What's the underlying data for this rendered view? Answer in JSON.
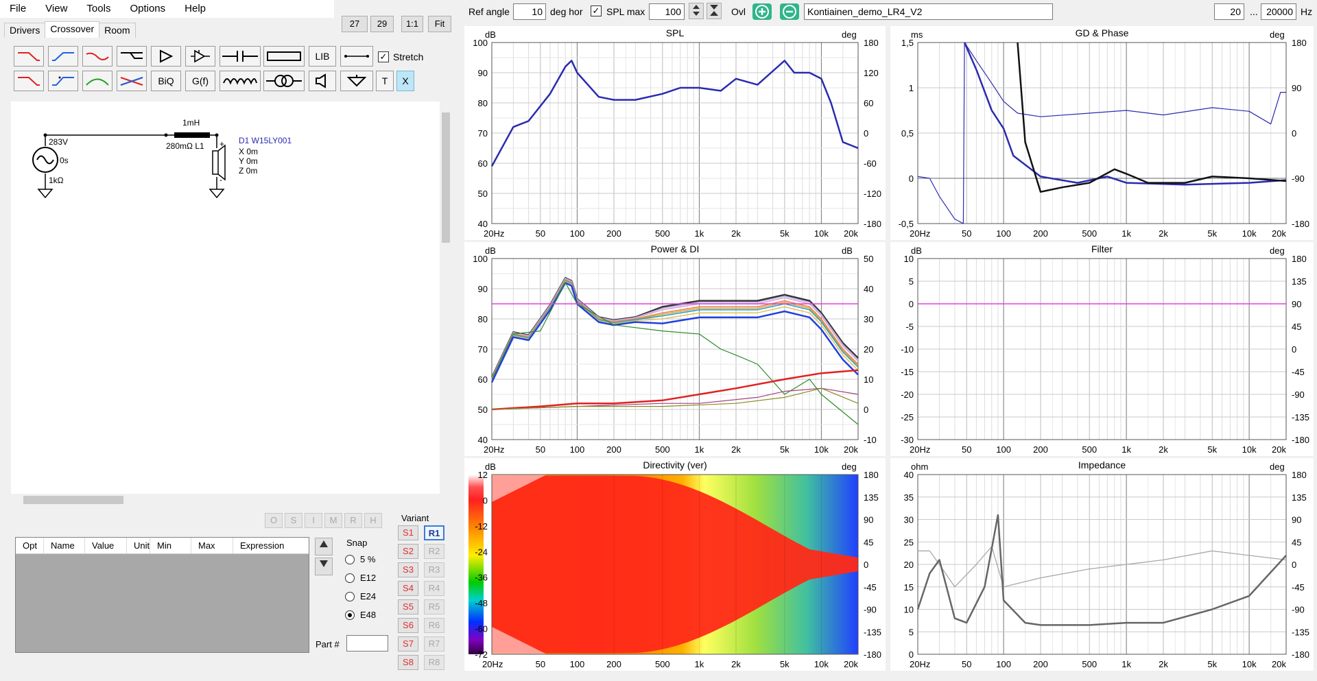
{
  "menu": [
    "File",
    "View",
    "Tools",
    "Options",
    "Help"
  ],
  "zoom_buttons": [
    "27",
    "29",
    "1:1",
    "Fit"
  ],
  "tabs": [
    "Drivers",
    "Crossover",
    "Room"
  ],
  "toolbar": {
    "lib": "LIB",
    "biq": "BiQ",
    "gf": "G(f)",
    "t": "T",
    "x": "X",
    "stretch": "Stretch"
  },
  "schematic": {
    "source_voltage": "283V",
    "source_phase": "0s",
    "source_impedance": "1kΩ",
    "inductor_value": "1mH",
    "inductor_label": "280mΩ L1",
    "driver_name": "D1 W15LY001",
    "driver_x": "X 0m",
    "driver_y": "Y 0m",
    "driver_z": "Z 0m"
  },
  "opt_buttons": [
    "O",
    "S",
    "I",
    "M",
    "R",
    "H"
  ],
  "table_headers": [
    "Opt",
    "Name",
    "Value",
    "Unit",
    "Min",
    "Max",
    "Expression"
  ],
  "snap": {
    "label": "Snap",
    "options": [
      "5 %",
      "E12",
      "E24",
      "E48"
    ],
    "selected": "E48"
  },
  "part_label": "Part #",
  "variant": {
    "label": "Variant",
    "s": [
      "S1",
      "S2",
      "S3",
      "S4",
      "S5",
      "S6",
      "S7",
      "S8"
    ],
    "r": [
      "R1",
      "R2",
      "R3",
      "R4",
      "R5",
      "R6",
      "R7",
      "R8"
    ]
  },
  "topbar": {
    "ref_angle_label": "Ref angle",
    "ref_angle_value": "10",
    "deg_hor": "deg hor",
    "spl_max_label": "SPL max",
    "spl_max_value": "100",
    "ovl": "Ovl",
    "project": "Kontiainen_demo_LR4_V2",
    "f_min": "20",
    "dots": "...",
    "f_max": "20000",
    "hz": "Hz"
  },
  "freq_ticks": [
    "20Hz",
    "50",
    "100",
    "200",
    "500",
    "1k",
    "2k",
    "5k",
    "10k",
    "20k"
  ],
  "charts": {
    "spl": {
      "title": "SPL",
      "ylabel": "dB",
      "y2label": "deg",
      "yticks": [
        "100",
        "90",
        "80",
        "70",
        "60",
        "50",
        "40"
      ],
      "y2ticks": [
        "180",
        "120",
        "60",
        "0",
        "-60",
        "-120",
        "-180"
      ]
    },
    "gd": {
      "title": "GD & Phase",
      "ylabel": "ms",
      "y2label": "deg",
      "yticks": [
        "1,5",
        "1",
        "0,5",
        "0",
        "-0,5"
      ],
      "y2ticks": [
        "180",
        "90",
        "0",
        "-90",
        "-180"
      ]
    },
    "power": {
      "title": "Power & DI",
      "ylabel": "dB",
      "y2label": "dB",
      "yticks": [
        "100",
        "90",
        "80",
        "70",
        "60",
        "50",
        "40"
      ],
      "y2ticks": [
        "50",
        "40",
        "30",
        "20",
        "10",
        "0",
        "-10"
      ]
    },
    "filter": {
      "title": "Filter",
      "ylabel": "dB",
      "y2label": "deg",
      "yticks": [
        "10",
        "5",
        "0",
        "-5",
        "-10",
        "-15",
        "-20",
        "-25",
        "-30"
      ],
      "y2ticks": [
        "180",
        "135",
        "90",
        "45",
        "0",
        "-45",
        "-90",
        "-135",
        "-180"
      ]
    },
    "dir": {
      "title": "Directivity (ver)",
      "ylabel": "dB",
      "y2label": "deg",
      "scale": [
        "12",
        "0",
        "-12",
        "-24",
        "-36",
        "-48",
        "-60",
        "-72"
      ],
      "y2ticks": [
        "180",
        "135",
        "90",
        "45",
        "0",
        "-45",
        "-90",
        "-135",
        "-180"
      ]
    },
    "imp": {
      "title": "Impedance",
      "ylabel": "ohm",
      "y2label": "deg",
      "yticks": [
        "40",
        "35",
        "30",
        "25",
        "20",
        "15",
        "10",
        "5",
        "0"
      ],
      "y2ticks": [
        "180",
        "135",
        "90",
        "45",
        "0",
        "-45",
        "-90",
        "-135",
        "-180"
      ]
    }
  },
  "chart_data": [
    {
      "type": "line",
      "title": "SPL",
      "ylabel": "dB",
      "ylim": [
        40,
        100
      ],
      "x": [
        20,
        30,
        40,
        60,
        80,
        90,
        100,
        150,
        200,
        300,
        500,
        700,
        1000,
        1500,
        2000,
        3000,
        5000,
        6000,
        8000,
        10000,
        12000,
        15000,
        20000
      ],
      "series": [
        {
          "values": [
            59,
            72,
            74,
            83,
            92,
            94,
            90,
            82,
            81,
            81,
            83,
            85,
            85,
            84,
            88,
            86,
            94,
            90,
            90,
            88,
            80,
            67,
            65
          ]
        }
      ]
    },
    {
      "type": "line",
      "title": "Impedance",
      "ylabel": "ohm",
      "ylim": [
        0,
        40
      ],
      "x": [
        20,
        25,
        30,
        40,
        50,
        70,
        90,
        100,
        150,
        200,
        500,
        1000,
        2000,
        5000,
        10000,
        20000
      ],
      "series": [
        {
          "values": [
            10,
            18,
            21,
            8,
            7,
            15,
            31,
            12,
            7,
            6.5,
            6.5,
            7,
            7,
            10,
            13,
            22
          ]
        }
      ]
    }
  ],
  "colors": {
    "accent": "#1e90ff",
    "phase": "#2a2aa8",
    "variant_red": "#e03030"
  }
}
